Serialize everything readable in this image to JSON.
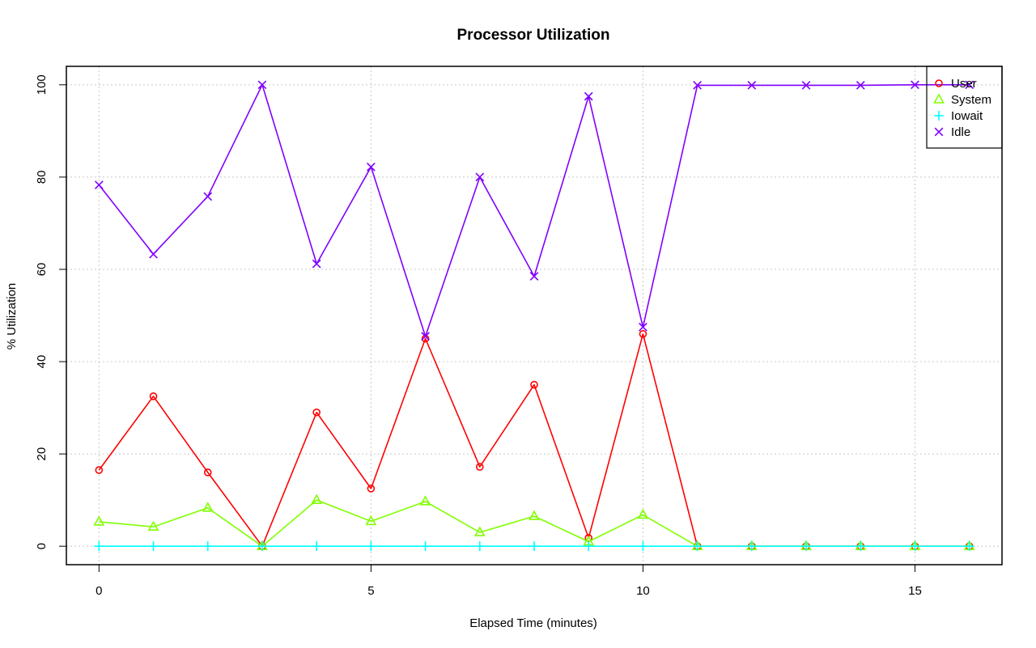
{
  "chart_data": {
    "type": "line",
    "title": "Processor Utilization",
    "xlabel": "Elapsed Time (minutes)",
    "ylabel": "% Utilization",
    "xlim": [
      -0.6,
      16.6
    ],
    "ylim": [
      -4,
      104
    ],
    "xticks": [
      0,
      5,
      10,
      15
    ],
    "yticks": [
      0,
      20,
      40,
      60,
      80,
      100
    ],
    "grid": true,
    "legend_position": "top-right",
    "x": [
      0,
      1,
      2,
      3,
      4,
      5,
      6,
      7,
      8,
      9,
      10,
      11,
      12,
      13,
      14,
      15,
      16
    ],
    "series": [
      {
        "name": "User",
        "color": "#ff0000",
        "marker": "circle",
        "values": [
          16.5,
          32.5,
          16,
          0,
          29,
          12.5,
          45,
          17.2,
          35,
          1.8,
          46,
          0,
          0,
          0,
          0,
          0,
          0
        ]
      },
      {
        "name": "System",
        "color": "#80ff00",
        "marker": "triangle",
        "values": [
          5.3,
          4.2,
          8.3,
          0,
          10,
          5.4,
          9.7,
          3,
          6.5,
          1,
          6.8,
          0,
          0,
          0,
          0,
          0,
          0
        ]
      },
      {
        "name": "Iowait",
        "color": "#00ffff",
        "marker": "plus",
        "values": [
          0,
          0,
          0,
          0,
          0,
          0,
          0,
          0,
          0,
          0,
          0,
          0,
          0,
          0,
          0,
          0,
          0
        ]
      },
      {
        "name": "Idle",
        "color": "#8000ff",
        "marker": "x",
        "values": [
          78.3,
          63.3,
          75.8,
          100,
          61.2,
          82.2,
          45.5,
          80,
          58.5,
          97.5,
          47.5,
          99.9,
          99.9,
          99.9,
          99.9,
          100,
          100
        ]
      }
    ]
  }
}
